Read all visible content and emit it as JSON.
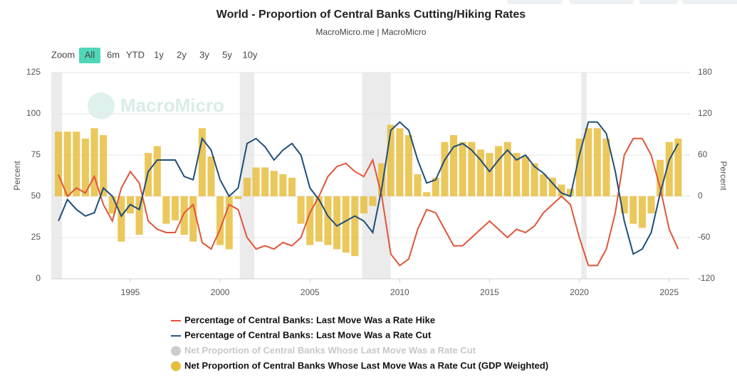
{
  "chart_data": {
    "type": "combo",
    "title": "World - Proportion of Central Banks Cutting/Hiking Rates",
    "subtitle": "MacroMicro.me | MacroMicro",
    "watermark": "MacroMicro",
    "zoom": {
      "label": "Zoom",
      "buttons": [
        "All",
        "6m",
        "YTD",
        "1y",
        "2y",
        "3y",
        "5y",
        "10y"
      ],
      "active": 0
    },
    "ylabel": "Percent",
    "y2label": "Percent",
    "xlim": [
      1990.6,
      2026.0
    ],
    "xticks": [
      1995,
      2000,
      2005,
      2010,
      2015,
      2020,
      2025
    ],
    "ylim": [
      0,
      125
    ],
    "yticks": [
      0,
      25,
      50,
      75,
      100,
      125
    ],
    "y2lim": [
      -120,
      180
    ],
    "y2ticks": [
      -120,
      -60,
      0,
      60,
      120,
      180
    ],
    "grid": true,
    "shaded_ranges": [
      [
        1990.6,
        1991.2
      ],
      [
        2001.1,
        2001.9
      ],
      [
        2007.9,
        2009.5
      ],
      [
        2020.1,
        2020.4
      ]
    ],
    "x": [
      1991.0,
      1991.5,
      1992.0,
      1992.5,
      1993.0,
      1993.5,
      1994.0,
      1994.5,
      1995.0,
      1995.5,
      1996.0,
      1996.5,
      1997.0,
      1997.5,
      1998.0,
      1998.5,
      1999.0,
      1999.5,
      2000.0,
      2000.5,
      2001.0,
      2001.5,
      2002.0,
      2002.5,
      2003.0,
      2003.5,
      2004.0,
      2004.5,
      2005.0,
      2005.5,
      2006.0,
      2006.5,
      2007.0,
      2007.5,
      2008.0,
      2008.5,
      2009.0,
      2009.5,
      2010.0,
      2010.5,
      2011.0,
      2011.5,
      2012.0,
      2012.5,
      2013.0,
      2013.5,
      2014.0,
      2014.5,
      2015.0,
      2015.5,
      2016.0,
      2016.5,
      2017.0,
      2017.5,
      2018.0,
      2018.5,
      2019.0,
      2019.5,
      2020.0,
      2020.5,
      2021.0,
      2021.5,
      2022.0,
      2022.5,
      2023.0,
      2023.5,
      2024.0,
      2024.5,
      2025.0,
      2025.5
    ],
    "series": [
      {
        "name": "Percentage of Central Banks: Last Move Was a Rate Hike",
        "type": "line",
        "color": "#e0553a",
        "values": [
          63,
          50,
          55,
          52,
          62,
          45,
          35,
          55,
          65,
          58,
          35,
          30,
          28,
          28,
          40,
          45,
          22,
          18,
          30,
          45,
          42,
          25,
          18,
          20,
          18,
          22,
          20,
          25,
          40,
          50,
          62,
          68,
          70,
          65,
          62,
          72,
          50,
          15,
          8,
          12,
          30,
          42,
          40,
          30,
          20,
          20,
          25,
          30,
          35,
          30,
          25,
          30,
          28,
          32,
          40,
          45,
          50,
          45,
          25,
          8,
          8,
          18,
          40,
          75,
          85,
          85,
          75,
          55,
          30,
          18
        ]
      },
      {
        "name": "Percentage of Central Banks: Last Move Was a Rate Cut",
        "type": "line",
        "color": "#1f4e79",
        "values": [
          35,
          48,
          42,
          38,
          40,
          55,
          50,
          38,
          45,
          42,
          65,
          72,
          72,
          72,
          62,
          60,
          85,
          78,
          60,
          50,
          55,
          82,
          85,
          80,
          72,
          78,
          82,
          75,
          55,
          48,
          38,
          32,
          35,
          38,
          35,
          28,
          55,
          90,
          95,
          90,
          72,
          58,
          60,
          72,
          80,
          82,
          78,
          72,
          65,
          72,
          78,
          72,
          75,
          68,
          64,
          58,
          52,
          50,
          75,
          95,
          95,
          88,
          65,
          35,
          15,
          18,
          28,
          52,
          72,
          82
        ]
      },
      {
        "name": "Net Proportion of Central Banks Whose Last Move Was a Rate Cut",
        "type": "bar",
        "color": "#cccccc",
        "visible": false,
        "axis": "y2"
      },
      {
        "name": "Net Proportion of Central Banks Whose Last Move Was a Rate Cut (GDP Weighted)",
        "type": "bar",
        "color": "#e8be3f",
        "visible": true,
        "axis": "y2",
        "values": [
          94,
          94,
          94,
          84,
          99,
          89,
          -25,
          -66,
          -25,
          -56,
          63,
          73,
          -40,
          -35,
          -56,
          -66,
          99,
          58,
          -71,
          -77,
          -4,
          27,
          42,
          42,
          37,
          32,
          27,
          -40,
          -71,
          -66,
          -71,
          -77,
          -82,
          -87,
          -25,
          -14,
          48,
          104,
          99,
          89,
          32,
          6,
          27,
          79,
          89,
          79,
          79,
          68,
          63,
          73,
          79,
          63,
          58,
          48,
          32,
          27,
          17,
          11,
          84,
          99,
          99,
          84,
          1,
          -25,
          -40,
          -46,
          -25,
          53,
          79,
          84
        ]
      }
    ]
  }
}
